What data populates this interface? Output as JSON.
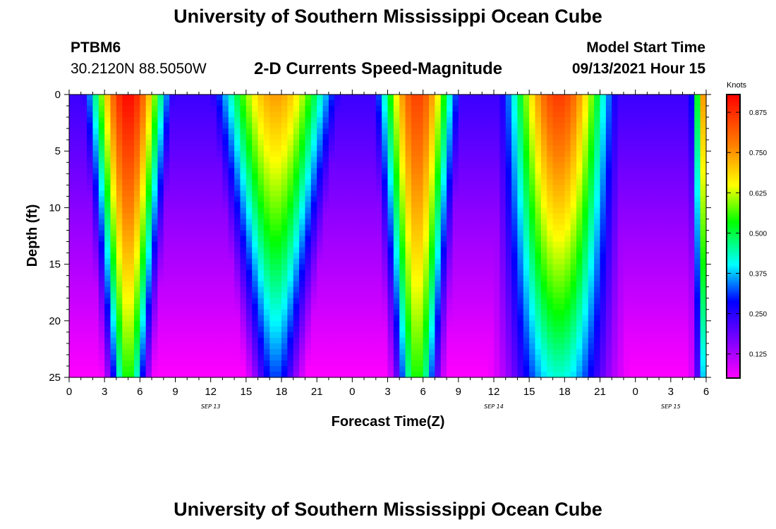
{
  "header": {
    "title_top": "University of Southern Mississippi Ocean Cube",
    "title_bottom": "University of Southern Mississippi Ocean Cube",
    "station": "PTBM6",
    "coords": "30.2120N  88.5050W",
    "subtitle": "2-D Currents Speed-Magnitude",
    "model_label": "Model Start Time",
    "model_time": "09/13/2021 Hour 15"
  },
  "chart_data": {
    "type": "heatmap",
    "title": "2-D Currents Speed-Magnitude",
    "xlabel": "Forecast Time(Z)",
    "ylabel": "Depth (ft)",
    "x_ticks": [
      "0",
      "3",
      "6",
      "9",
      "12",
      "15",
      "18",
      "21",
      "0",
      "3",
      "6",
      "9",
      "12",
      "15",
      "18",
      "21",
      "0",
      "3",
      "6"
    ],
    "x_range_hours": [
      0,
      54
    ],
    "date_labels": [
      {
        "label": "SEP 13",
        "hour": 12
      },
      {
        "label": "SEP 14",
        "hour": 36
      },
      {
        "label": "SEP 15",
        "hour": 51
      }
    ],
    "y_ticks": [
      "0",
      "5",
      "10",
      "15",
      "20",
      "25"
    ],
    "y_range": [
      0,
      25
    ],
    "colorbar": {
      "label": "Knots",
      "ticks": [
        "0.875",
        "0.750",
        "0.625",
        "0.500",
        "0.375",
        "0.250",
        "0.125"
      ],
      "tick_values": [
        0.875,
        0.75,
        0.625,
        0.5,
        0.375,
        0.25,
        0.125
      ],
      "range": [
        0.05,
        0.93
      ]
    },
    "speed_components": [
      {
        "center_hour": 5,
        "width_top": 3.2,
        "width_bottom": 1.5,
        "amp_top": 0.92,
        "amp_bottom": 0.52
      },
      {
        "center_hour": 17.5,
        "width_top": 5.0,
        "width_bottom": 2.0,
        "amp_top": 0.72,
        "amp_bottom": 0.3
      },
      {
        "center_hour": 29.5,
        "width_top": 3.2,
        "width_bottom": 1.7,
        "amp_top": 0.84,
        "amp_bottom": 0.52
      },
      {
        "center_hour": 41.5,
        "width_top": 4.3,
        "width_bottom": 4.2,
        "amp_top": 0.85,
        "amp_bottom": 0.4
      },
      {
        "center_hour": 54.5,
        "width_top": 1.6,
        "width_bottom": 1.3,
        "amp_top": 0.9,
        "amp_bottom": 0.5
      }
    ],
    "baseline_speed_top": 0.22,
    "baseline_speed_bottom": 0.05
  }
}
